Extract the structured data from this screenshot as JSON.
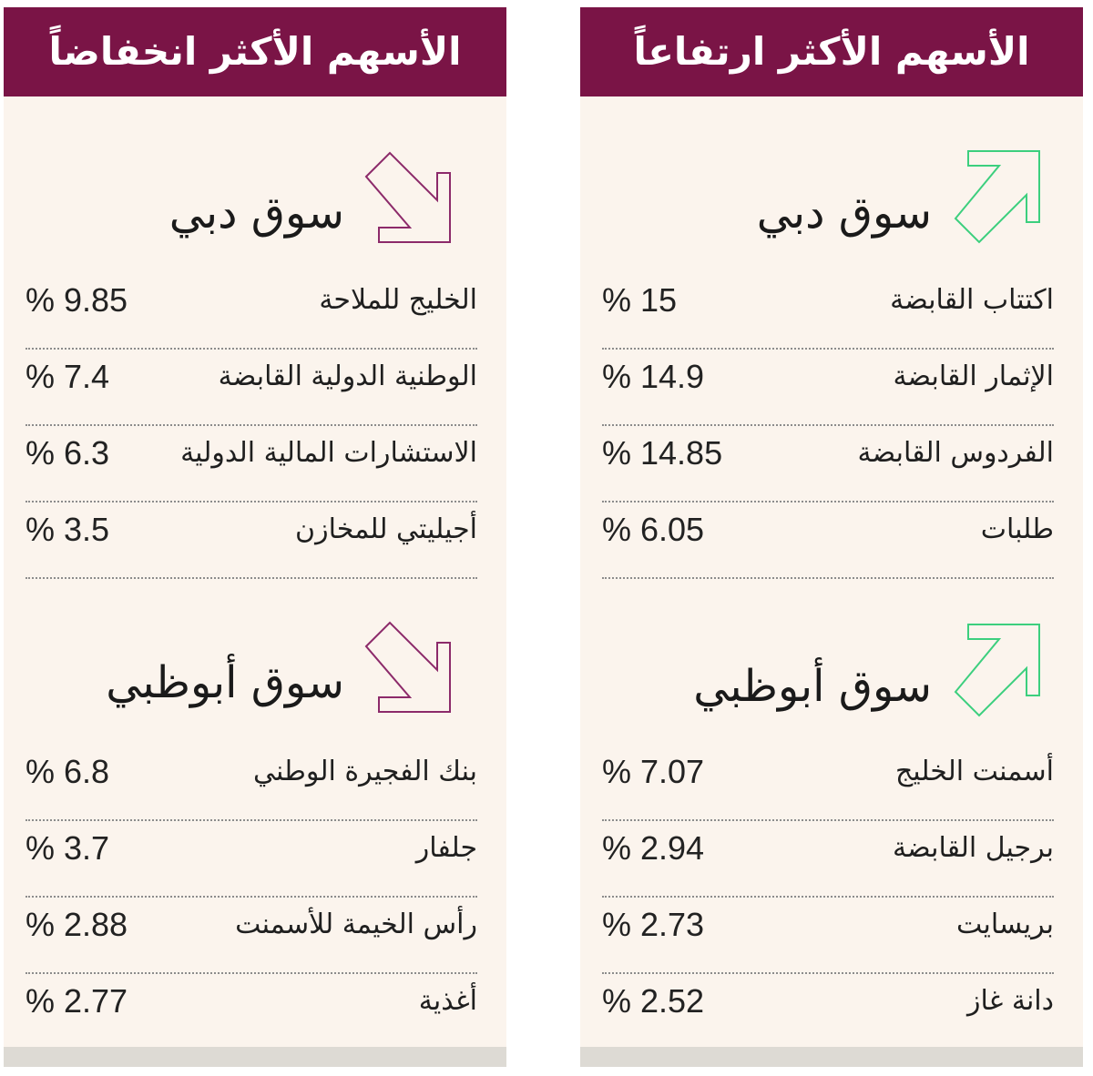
{
  "colors": {
    "header_bg": "#7a1446",
    "panel_bg": "#fbf4ed",
    "rise_arrow": "#3ccf7e",
    "fall_arrow": "#8c2a6a"
  },
  "rising": {
    "title": "الأسهم الأكثر ارتفاعاً",
    "dubai": {
      "market": "سوق دبي",
      "icon": "arrow-up-right-icon",
      "rows": [
        {
          "name": "اكتتاب القابضة",
          "value": "% 15"
        },
        {
          "name": "الإثمار القابضة",
          "value": "% 14.9"
        },
        {
          "name": "الفردوس القابضة",
          "value": "% 14.85"
        },
        {
          "name": "طلبات",
          "value": "% 6.05"
        }
      ]
    },
    "abudhabi": {
      "market": "سوق أبوظبي",
      "icon": "arrow-up-right-icon",
      "rows": [
        {
          "name": "أسمنت الخليج",
          "value": "% 7.07"
        },
        {
          "name": "برجيل القابضة",
          "value": "% 2.94"
        },
        {
          "name": "بريسايت",
          "value": "% 2.73"
        },
        {
          "name": "دانة غاز",
          "value": "% 2.52"
        }
      ]
    }
  },
  "falling": {
    "title": "الأسهم الأكثر انخفاضاً",
    "dubai": {
      "market": "سوق دبي",
      "icon": "arrow-down-right-icon",
      "rows": [
        {
          "name": "الخليج للملاحة",
          "value": "% 9.85"
        },
        {
          "name": "الوطنية الدولية القابضة",
          "value": "% 7.4"
        },
        {
          "name": "الاستشارات المالية الدولية",
          "value": "% 6.3"
        },
        {
          "name": "أجيليتي للمخازن",
          "value": "% 3.5"
        }
      ]
    },
    "abudhabi": {
      "market": "سوق أبوظبي",
      "icon": "arrow-down-right-icon",
      "rows": [
        {
          "name": "بنك الفجيرة الوطني",
          "value": "% 6.8"
        },
        {
          "name": "جلفار",
          "value": "% 3.7"
        },
        {
          "name": "رأس الخيمة للأسمنت",
          "value": "% 2.88"
        },
        {
          "name": "أغذية",
          "value": "% 2.77"
        }
      ]
    }
  }
}
